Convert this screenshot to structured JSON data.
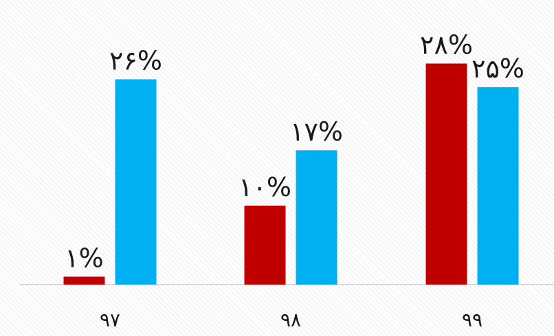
{
  "chart_data": {
    "type": "bar",
    "categories": [
      "۹۷",
      "۹۸",
      "۹۹"
    ],
    "series": [
      {
        "color": "#c00000",
        "values": [
          1,
          10,
          28
        ],
        "labels": [
          "۱%",
          "۱۰%",
          "۲۸%"
        ]
      },
      {
        "color": "#00b0f0",
        "values": [
          26,
          17,
          25
        ],
        "labels": [
          "۲۶%",
          "۱۷%",
          "۲۵%"
        ]
      }
    ],
    "ylim": [
      0,
      33
    ],
    "grid": false,
    "legend": "none"
  }
}
